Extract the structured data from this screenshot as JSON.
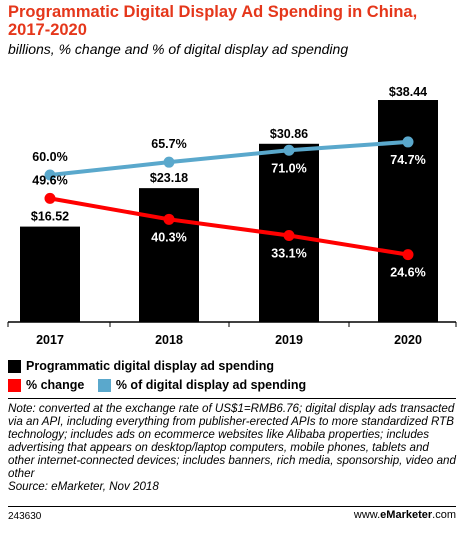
{
  "header": {
    "title": "Programmatic Digital Display Ad Spending in China, 2017-2020",
    "subtitle": "billions, % change and % of digital display ad spending"
  },
  "colors": {
    "title": "#e5371b",
    "bars": "#000000",
    "pct_change": "#ff0000",
    "pct_share": "#5aa8cc"
  },
  "legend": {
    "spending": "Programmatic digital display ad spending",
    "change": "% change",
    "share": "% of digital display ad spending"
  },
  "note": {
    "text": "Note: converted at the exchange rate of US$1=RMB6.76; digital display ads transacted via an API, including everything from publisher-erected APIs to more standardized RTB technology; includes ads on ecommerce websites like Alibaba properties; includes advertising that appears on desktop/laptop computers, mobile phones, tablets and other internet-connected devices; includes banners, rich media, sponsorship, video and other",
    "source": "Source: eMarketer, Nov 2018"
  },
  "footer": {
    "id": "243630",
    "brand_prefix": "www.",
    "brand_name": "eMarketer",
    "brand_suffix": ".com"
  },
  "chart_data": {
    "type": "bar",
    "categories": [
      "2017",
      "2018",
      "2019",
      "2020"
    ],
    "series": [
      {
        "name": "Programmatic digital display ad spending",
        "type": "bar",
        "values": [
          16.52,
          23.18,
          30.86,
          38.44
        ],
        "labels": [
          "$16.52",
          "$23.18",
          "$30.86",
          "$38.44"
        ]
      },
      {
        "name": "% change",
        "type": "line",
        "values": [
          49.6,
          40.3,
          33.1,
          24.6
        ],
        "labels": [
          "49.6%",
          "40.3%",
          "33.1%",
          "24.6%"
        ]
      },
      {
        "name": "% of digital display ad spending",
        "type": "line",
        "values": [
          60.0,
          65.7,
          71.0,
          74.7
        ],
        "labels": [
          "60.0%",
          "65.7%",
          "71.0%",
          "74.7%"
        ]
      }
    ],
    "grid": false,
    "legend_position": "bottom"
  }
}
